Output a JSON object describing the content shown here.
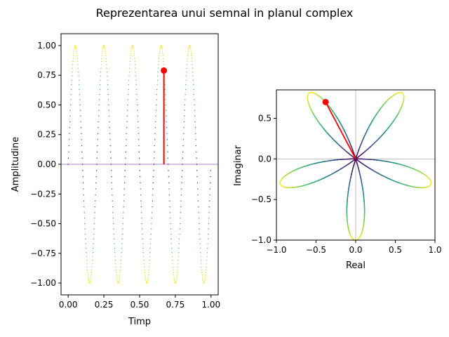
{
  "figure": {
    "title": "Reprezentarea unui semnal in planul complex"
  },
  "chart_data": [
    {
      "type": "line",
      "name": "time-domain",
      "xlabel": "Timp",
      "ylabel": "Amplitudine",
      "xlim": [
        -0.05,
        1.05
      ],
      "ylim": [
        -1.1,
        1.1
      ],
      "xticks": [
        0.0,
        0.25,
        0.5,
        0.75,
        1.0
      ],
      "xtick_labels": [
        "0.00",
        "0.25",
        "0.50",
        "0.75",
        "1.00"
      ],
      "yticks": [
        -1.0,
        -0.75,
        -0.5,
        -0.25,
        0.0,
        0.25,
        0.5,
        0.75,
        1.0
      ],
      "ytick_labels": [
        "−1.00",
        "−0.75",
        "−0.50",
        "−0.25",
        "0.00",
        "0.25",
        "0.50",
        "0.75",
        "1.00"
      ],
      "signal": {
        "function": "sin",
        "frequency": 5,
        "t_start": 0,
        "t_end": 1,
        "style": "dotted",
        "colormap": "viridis",
        "color_by": "abs(amplitude)"
      },
      "zero_line_color": "#9b59b6",
      "marker": {
        "t": 0.67,
        "value": 0.79,
        "color": "#ff0000"
      }
    },
    {
      "type": "line",
      "name": "complex-plane",
      "xlabel": "Real",
      "ylabel": "Imaginar",
      "xlim": [
        -1.0,
        1.0
      ],
      "ylim": [
        -1.0,
        0.85
      ],
      "xticks": [
        -1.0,
        -0.5,
        0.0,
        0.5,
        1.0
      ],
      "xtick_labels": [
        "−1.0",
        "−0.5",
        "0.0",
        "0.5",
        "1.0"
      ],
      "yticks": [
        -1.0,
        -0.5,
        0.0,
        0.5
      ],
      "ytick_labels": [
        "−1.0",
        "−0.5",
        "0.0",
        "0.5"
      ],
      "curve": {
        "definition": "x(t)*exp(-2*pi*i*t)",
        "petals": 5,
        "colormap": "viridis",
        "color_by": "abs(amplitude)"
      },
      "axis_lines_color": "#9e9e9e",
      "marker": {
        "real": -0.38,
        "imag": 0.7,
        "color": "#ff0000"
      }
    }
  ]
}
